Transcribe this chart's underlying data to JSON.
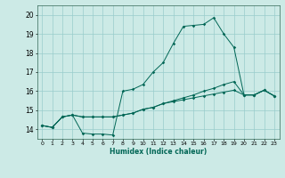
{
  "xlabel": "Humidex (Indice chaleur)",
  "background_color": "#cceae6",
  "grid_color": "#99cccc",
  "line_color": "#006655",
  "xlim": [
    -0.5,
    23.5
  ],
  "ylim": [
    13.5,
    20.5
  ],
  "yticks": [
    14,
    15,
    16,
    17,
    18,
    19,
    20
  ],
  "xticks": [
    0,
    1,
    2,
    3,
    4,
    5,
    6,
    7,
    8,
    9,
    10,
    11,
    12,
    13,
    14,
    15,
    16,
    17,
    18,
    19,
    20,
    21,
    22,
    23
  ],
  "series": [
    [
      14.2,
      14.1,
      14.65,
      14.75,
      13.8,
      13.75,
      13.75,
      13.7,
      16.0,
      16.1,
      16.35,
      17.0,
      17.5,
      18.5,
      19.4,
      19.45,
      19.5,
      19.85,
      19.0,
      18.3,
      15.8,
      15.8,
      16.05,
      15.75
    ],
    [
      14.2,
      14.1,
      14.65,
      14.75,
      14.65,
      14.65,
      14.65,
      14.65,
      14.75,
      14.85,
      15.05,
      15.15,
      15.35,
      15.5,
      15.65,
      15.8,
      16.0,
      16.15,
      16.35,
      16.5,
      15.8,
      15.8,
      16.05,
      15.75
    ],
    [
      14.2,
      14.1,
      14.65,
      14.75,
      14.65,
      14.65,
      14.65,
      14.65,
      14.75,
      14.85,
      15.05,
      15.15,
      15.35,
      15.45,
      15.55,
      15.65,
      15.75,
      15.85,
      15.95,
      16.05,
      15.8,
      15.8,
      16.05,
      15.75
    ]
  ]
}
